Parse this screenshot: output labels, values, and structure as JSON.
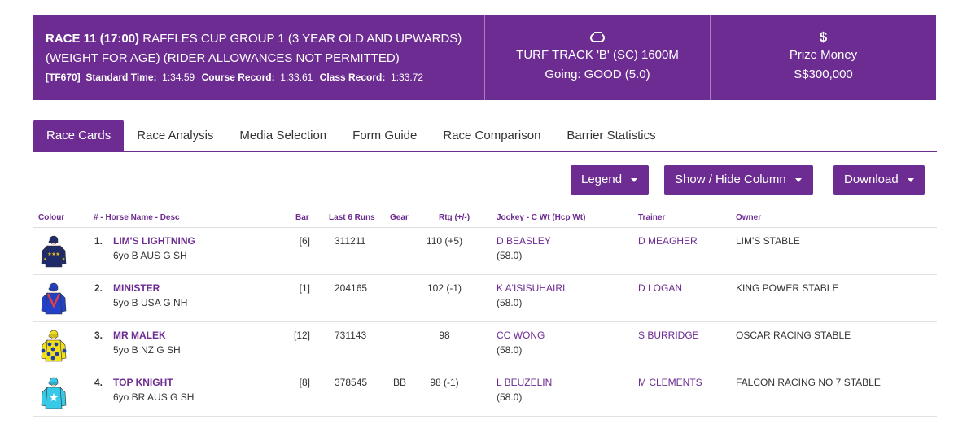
{
  "race": {
    "label": "RACE 11 (17:00)",
    "name": "RAFFLES CUP GROUP 1 (3 YEAR OLD AND UPWARDS)",
    "conditions": "(WEIGHT FOR AGE) (RIDER ALLOWANCES NOT PERMITTED)",
    "code": "[TF670]",
    "standard_time_label": "Standard Time:",
    "standard_time": "1:34.59",
    "course_record_label": "Course Record:",
    "course_record": "1:33.61",
    "class_record_label": "Class Record:",
    "class_record": "1:33.72"
  },
  "track": {
    "icon": "track-icon",
    "surface": "TURF TRACK 'B' (SC) 1600M",
    "going": "Going: GOOD (5.0)"
  },
  "prize": {
    "icon": "$",
    "label": "Prize Money",
    "amount": "S$300,000"
  },
  "tabs": [
    "Race Cards",
    "Race Analysis",
    "Media Selection",
    "Form Guide",
    "Race Comparison",
    "Barrier Statistics"
  ],
  "active_tab": "Race Cards",
  "buttons": {
    "legend": "Legend",
    "show_hide": "Show / Hide Column",
    "download": "Download"
  },
  "columns": [
    "Colour",
    "# - Horse Name - Desc",
    "Bar",
    "Last 6 Runs",
    "Gear",
    "Rtg (+/-)",
    "Jockey - C Wt (Hcp Wt)",
    "Trainer",
    "Owner"
  ],
  "runners": [
    {
      "num": "1.",
      "name": "LIM'S LIGHTNING",
      "desc": "6yo B AUS G SH",
      "bar": "[6]",
      "last6": "311211",
      "gear": "",
      "rating": "110 (+5)",
      "jockey": "D BEASLEY",
      "weight": "(58.0)",
      "trainer": "D MEAGHER",
      "owner": "LIM'S STABLE",
      "silk": {
        "body": "#1f2a6b",
        "sleeve": "#1f2a6b",
        "cap": "#1f2a6b",
        "accent": "#f0c419",
        "pattern": "stars"
      }
    },
    {
      "num": "2.",
      "name": "MINISTER",
      "desc": "5yo B USA G NH",
      "bar": "[1]",
      "last6": "204165",
      "gear": "",
      "rating": "102 (-1)",
      "jockey": "K A'ISISUHAIRI",
      "weight": "(58.0)",
      "trainer": "D LOGAN",
      "owner": "KING POWER STABLE",
      "silk": {
        "body": "#2340c9",
        "sleeve": "#2340c9",
        "cap": "#2340c9",
        "accent": "#e04040",
        "pattern": "vee"
      }
    },
    {
      "num": "3.",
      "name": "MR MALEK",
      "desc": "5yo B NZ G SH",
      "bar": "[12]",
      "last6": "731143",
      "gear": "",
      "rating": "98",
      "jockey": "CC WONG",
      "weight": "(58.0)",
      "trainer": "S BURRIDGE",
      "owner": "OSCAR RACING STABLE",
      "silk": {
        "body": "#f4e01a",
        "sleeve": "#f4e01a",
        "cap": "#f4e01a",
        "accent": "#1f3fa8",
        "pattern": "spots"
      }
    },
    {
      "num": "4.",
      "name": "TOP KNIGHT",
      "desc": "6yo BR AUS G SH",
      "bar": "[8]",
      "last6": "378545",
      "gear": "BB",
      "rating": "98 (-1)",
      "jockey": "L BEUZELIN",
      "weight": "(58.0)",
      "trainer": "M CLEMENTS",
      "owner": "FALCON RACING NO 7 STABLE",
      "silk": {
        "body": "#38c8e8",
        "sleeve": "#38c8e8",
        "cap": "#38c8e8",
        "accent": "#ffffff",
        "pattern": "star"
      }
    }
  ],
  "colors": {
    "brand": "#6d2c91",
    "divider": "#dddddd"
  }
}
